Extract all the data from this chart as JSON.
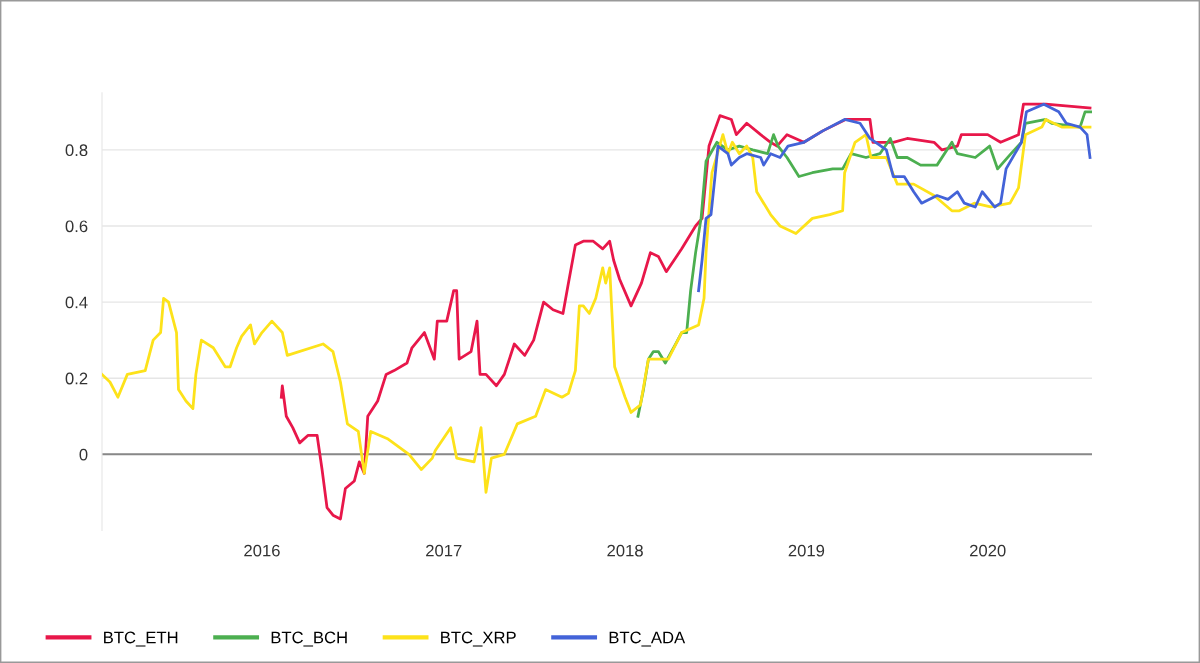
{
  "chart_data": {
    "type": "line",
    "xlim": [
      "2015-02-13",
      "2020-07-29"
    ],
    "xticks": [
      {
        "value": "2016-01-01",
        "label": "2016"
      },
      {
        "value": "2017-01-01",
        "label": "2017"
      },
      {
        "value": "2018-01-01",
        "label": "2018"
      },
      {
        "value": "2019-01-01",
        "label": "2019"
      },
      {
        "value": "2020-01-01",
        "label": "2020"
      }
    ],
    "ylim": [
      -0.2,
      0.95
    ],
    "yticks": [
      0,
      0.2,
      0.4,
      0.6,
      0.8
    ],
    "grid": "y",
    "legend": "bottom left",
    "ref_lines": [
      {
        "axis": "y",
        "value": 0,
        "color": "#888888"
      }
    ],
    "series": [
      {
        "name": "BTC_ETH",
        "color": "#e8174a",
        "x": [
          "2016-02-09",
          "2016-02-11",
          "2016-02-19",
          "2016-03-03",
          "2016-03-17",
          "2016-04-03",
          "2016-04-21",
          "2016-05-01",
          "2016-05-11",
          "2016-05-23",
          "2016-06-07",
          "2016-06-17",
          "2016-07-05",
          "2016-07-15",
          "2016-07-25",
          "2016-08-01",
          "2016-08-21",
          "2016-09-07",
          "2016-09-23",
          "2016-10-19",
          "2016-10-29",
          "2016-11-23",
          "2016-12-13",
          "2016-12-19",
          "2017-01-07",
          "2017-01-21",
          "2017-01-27",
          "2017-02-01",
          "2017-02-25",
          "2017-03-09",
          "2017-03-15",
          "2017-03-27",
          "2017-04-17",
          "2017-05-03",
          "2017-05-23",
          "2017-06-13",
          "2017-07-01",
          "2017-07-21",
          "2017-08-09",
          "2017-08-29",
          "2017-09-09",
          "2017-09-23",
          "2017-10-09",
          "2017-10-29",
          "2017-11-17",
          "2017-12-01",
          "2017-12-09",
          "2017-12-21",
          "2018-01-13",
          "2018-02-03",
          "2018-02-21",
          "2018-03-09",
          "2018-03-25",
          "2018-04-25",
          "2018-05-23",
          "2018-06-05",
          "2018-06-19",
          "2018-07-11",
          "2018-08-03",
          "2018-08-13",
          "2018-09-03",
          "2018-10-01",
          "2018-10-21",
          "2018-11-03",
          "2018-11-23",
          "2018-12-27",
          "2019-02-03",
          "2019-03-21",
          "2019-05-09",
          "2019-05-15",
          "2019-06-25",
          "2019-07-23",
          "2019-09-15",
          "2019-10-01",
          "2019-11-01",
          "2019-11-09",
          "2020-01-01",
          "2020-01-27",
          "2020-03-03",
          "2020-03-13",
          "2020-04-27",
          "2020-07-25"
        ],
        "values": [
          0.15,
          0.18,
          0.1,
          0.07,
          0.03,
          0.05,
          0.05,
          -0.04,
          -0.14,
          -0.16,
          -0.17,
          -0.09,
          -0.07,
          -0.02,
          -0.05,
          0.1,
          0.14,
          0.21,
          0.22,
          0.24,
          0.28,
          0.32,
          0.25,
          0.35,
          0.35,
          0.43,
          0.43,
          0.25,
          0.27,
          0.35,
          0.21,
          0.21,
          0.18,
          0.21,
          0.29,
          0.26,
          0.3,
          0.4,
          0.38,
          0.37,
          0.45,
          0.55,
          0.56,
          0.56,
          0.54,
          0.56,
          0.51,
          0.46,
          0.39,
          0.45,
          0.53,
          0.52,
          0.48,
          0.54,
          0.6,
          0.62,
          0.81,
          0.89,
          0.88,
          0.84,
          0.87,
          0.84,
          0.82,
          0.81,
          0.84,
          0.82,
          0.85,
          0.88,
          0.88,
          0.82,
          0.82,
          0.83,
          0.82,
          0.8,
          0.81,
          0.84,
          0.84,
          0.82,
          0.84,
          0.92,
          0.92,
          0.91
        ]
      },
      {
        "name": "BTC_BCH",
        "color": "#4caf50",
        "x": [
          "2018-01-27",
          "2018-02-07",
          "2018-02-17",
          "2018-02-27",
          "2018-03-09",
          "2018-03-23",
          "2018-04-13",
          "2018-04-25",
          "2018-05-05",
          "2018-05-13",
          "2018-05-23",
          "2018-06-03",
          "2018-06-13",
          "2018-07-05",
          "2018-07-27",
          "2018-08-19",
          "2018-09-15",
          "2018-10-15",
          "2018-10-27",
          "2018-11-05",
          "2018-11-23",
          "2018-12-17",
          "2019-01-13",
          "2019-02-23",
          "2019-03-15",
          "2019-04-01",
          "2019-05-01",
          "2019-05-29",
          "2019-06-19",
          "2019-07-03",
          "2019-07-23",
          "2019-08-19",
          "2019-09-21",
          "2019-10-21",
          "2019-11-01",
          "2019-12-07",
          "2020-01-05",
          "2020-01-21",
          "2020-02-17",
          "2020-03-09",
          "2020-03-17",
          "2020-04-27",
          "2020-05-09",
          "2020-07-05",
          "2020-07-15",
          "2020-07-29"
        ],
        "values": [
          0.1,
          0.17,
          0.25,
          0.27,
          0.27,
          0.24,
          0.29,
          0.32,
          0.32,
          0.43,
          0.53,
          0.62,
          0.77,
          0.82,
          0.8,
          0.81,
          0.8,
          0.79,
          0.84,
          0.81,
          0.78,
          0.73,
          0.74,
          0.75,
          0.75,
          0.79,
          0.78,
          0.79,
          0.83,
          0.78,
          0.78,
          0.76,
          0.76,
          0.82,
          0.79,
          0.78,
          0.81,
          0.75,
          0.79,
          0.82,
          0.87,
          0.88,
          0.87,
          0.86,
          0.9,
          0.9
        ]
      },
      {
        "name": "BTC_XRP",
        "color": "#fde21a",
        "x": [
          "2015-02-13",
          "2015-03-01",
          "2015-03-17",
          "2015-04-05",
          "2015-05-11",
          "2015-05-27",
          "2015-06-11",
          "2015-06-17",
          "2015-06-27",
          "2015-07-13",
          "2015-07-17",
          "2015-08-01",
          "2015-08-15",
          "2015-08-21",
          "2015-09-01",
          "2015-09-25",
          "2015-10-19",
          "2015-10-29",
          "2015-11-11",
          "2015-11-21",
          "2015-12-09",
          "2015-12-17",
          "2016-01-01",
          "2016-01-21",
          "2016-02-11",
          "2016-02-21",
          "2016-05-03",
          "2016-05-23",
          "2016-06-07",
          "2016-06-21",
          "2016-07-13",
          "2016-07-25",
          "2016-08-07",
          "2016-09-11",
          "2016-10-23",
          "2016-11-17",
          "2016-12-09",
          "2016-12-15",
          "2017-01-15",
          "2017-01-27",
          "2017-03-03",
          "2017-03-17",
          "2017-03-27",
          "2017-04-07",
          "2017-05-03",
          "2017-05-29",
          "2017-07-05",
          "2017-07-25",
          "2017-08-27",
          "2017-09-09",
          "2017-09-23",
          "2017-10-01",
          "2017-10-09",
          "2017-10-21",
          "2017-11-03",
          "2017-11-17",
          "2017-11-23",
          "2017-12-01",
          "2017-12-11",
          "2018-01-01",
          "2018-01-13",
          "2018-02-01",
          "2018-02-17",
          "2018-03-29",
          "2018-04-25",
          "2018-05-29",
          "2018-06-09",
          "2018-06-13",
          "2018-06-23",
          "2018-06-25",
          "2018-07-17",
          "2018-07-27",
          "2018-08-05",
          "2018-08-19",
          "2018-09-03",
          "2018-09-15",
          "2018-09-23",
          "2018-10-21",
          "2018-11-09",
          "2018-12-11",
          "2019-01-13",
          "2019-02-17",
          "2019-03-15",
          "2019-03-19",
          "2019-04-09",
          "2019-05-01",
          "2019-05-11",
          "2019-06-11",
          "2019-07-03",
          "2019-08-05",
          "2019-09-15",
          "2019-10-21",
          "2019-11-05",
          "2019-12-05",
          "2020-01-07",
          "2020-02-15",
          "2020-03-03",
          "2020-03-17",
          "2020-04-19",
          "2020-04-27",
          "2020-05-29",
          "2020-07-05",
          "2020-07-25"
        ],
        "values": [
          0.21,
          0.19,
          0.15,
          0.21,
          0.22,
          0.3,
          0.32,
          0.41,
          0.4,
          0.32,
          0.17,
          0.14,
          0.12,
          0.21,
          0.3,
          0.28,
          0.23,
          0.23,
          0.28,
          0.31,
          0.34,
          0.29,
          0.32,
          0.35,
          0.32,
          0.26,
          0.29,
          0.27,
          0.19,
          0.08,
          0.06,
          -0.05,
          0.06,
          0.04,
          0.0,
          -0.04,
          -0.01,
          0.01,
          0.07,
          -0.01,
          -0.02,
          0.07,
          -0.1,
          -0.01,
          0.0,
          0.08,
          0.1,
          0.17,
          0.15,
          0.16,
          0.22,
          0.39,
          0.39,
          0.37,
          0.41,
          0.49,
          0.45,
          0.49,
          0.23,
          0.15,
          0.11,
          0.13,
          0.25,
          0.25,
          0.32,
          0.34,
          0.41,
          0.53,
          0.71,
          0.74,
          0.84,
          0.79,
          0.82,
          0.79,
          0.81,
          0.78,
          0.69,
          0.63,
          0.6,
          0.58,
          0.62,
          0.63,
          0.64,
          0.74,
          0.82,
          0.84,
          0.78,
          0.78,
          0.71,
          0.71,
          0.68,
          0.64,
          0.64,
          0.66,
          0.65,
          0.66,
          0.7,
          0.84,
          0.86,
          0.88,
          0.86,
          0.86,
          0.86
        ]
      },
      {
        "name": "BTC_ADA",
        "color": "#4363d8",
        "x": [
          "2018-05-29",
          "2018-06-05",
          "2018-06-13",
          "2018-06-23",
          "2018-07-01",
          "2018-07-07",
          "2018-07-27",
          "2018-08-03",
          "2018-08-19",
          "2018-09-03",
          "2018-10-01",
          "2018-10-07",
          "2018-10-21",
          "2018-11-09",
          "2018-11-25",
          "2018-12-27",
          "2019-02-03",
          "2019-03-19",
          "2019-04-19",
          "2019-05-09",
          "2019-06-11",
          "2019-06-25",
          "2019-07-17",
          "2019-08-05",
          "2019-08-21",
          "2019-09-21",
          "2019-10-13",
          "2019-11-01",
          "2019-11-15",
          "2019-12-07",
          "2019-12-21",
          "2020-01-15",
          "2020-01-27",
          "2020-02-07",
          "2020-03-09",
          "2020-03-19",
          "2020-04-23",
          "2020-05-23",
          "2020-06-07",
          "2020-07-05",
          "2020-07-19",
          "2020-07-25"
        ],
        "values": [
          0.43,
          0.51,
          0.62,
          0.63,
          0.73,
          0.81,
          0.79,
          0.76,
          0.78,
          0.79,
          0.78,
          0.76,
          0.79,
          0.78,
          0.81,
          0.82,
          0.85,
          0.88,
          0.87,
          0.83,
          0.8,
          0.73,
          0.73,
          0.69,
          0.66,
          0.68,
          0.67,
          0.69,
          0.66,
          0.65,
          0.69,
          0.65,
          0.66,
          0.75,
          0.82,
          0.9,
          0.92,
          0.9,
          0.87,
          0.86,
          0.84,
          0.78
        ]
      }
    ]
  }
}
